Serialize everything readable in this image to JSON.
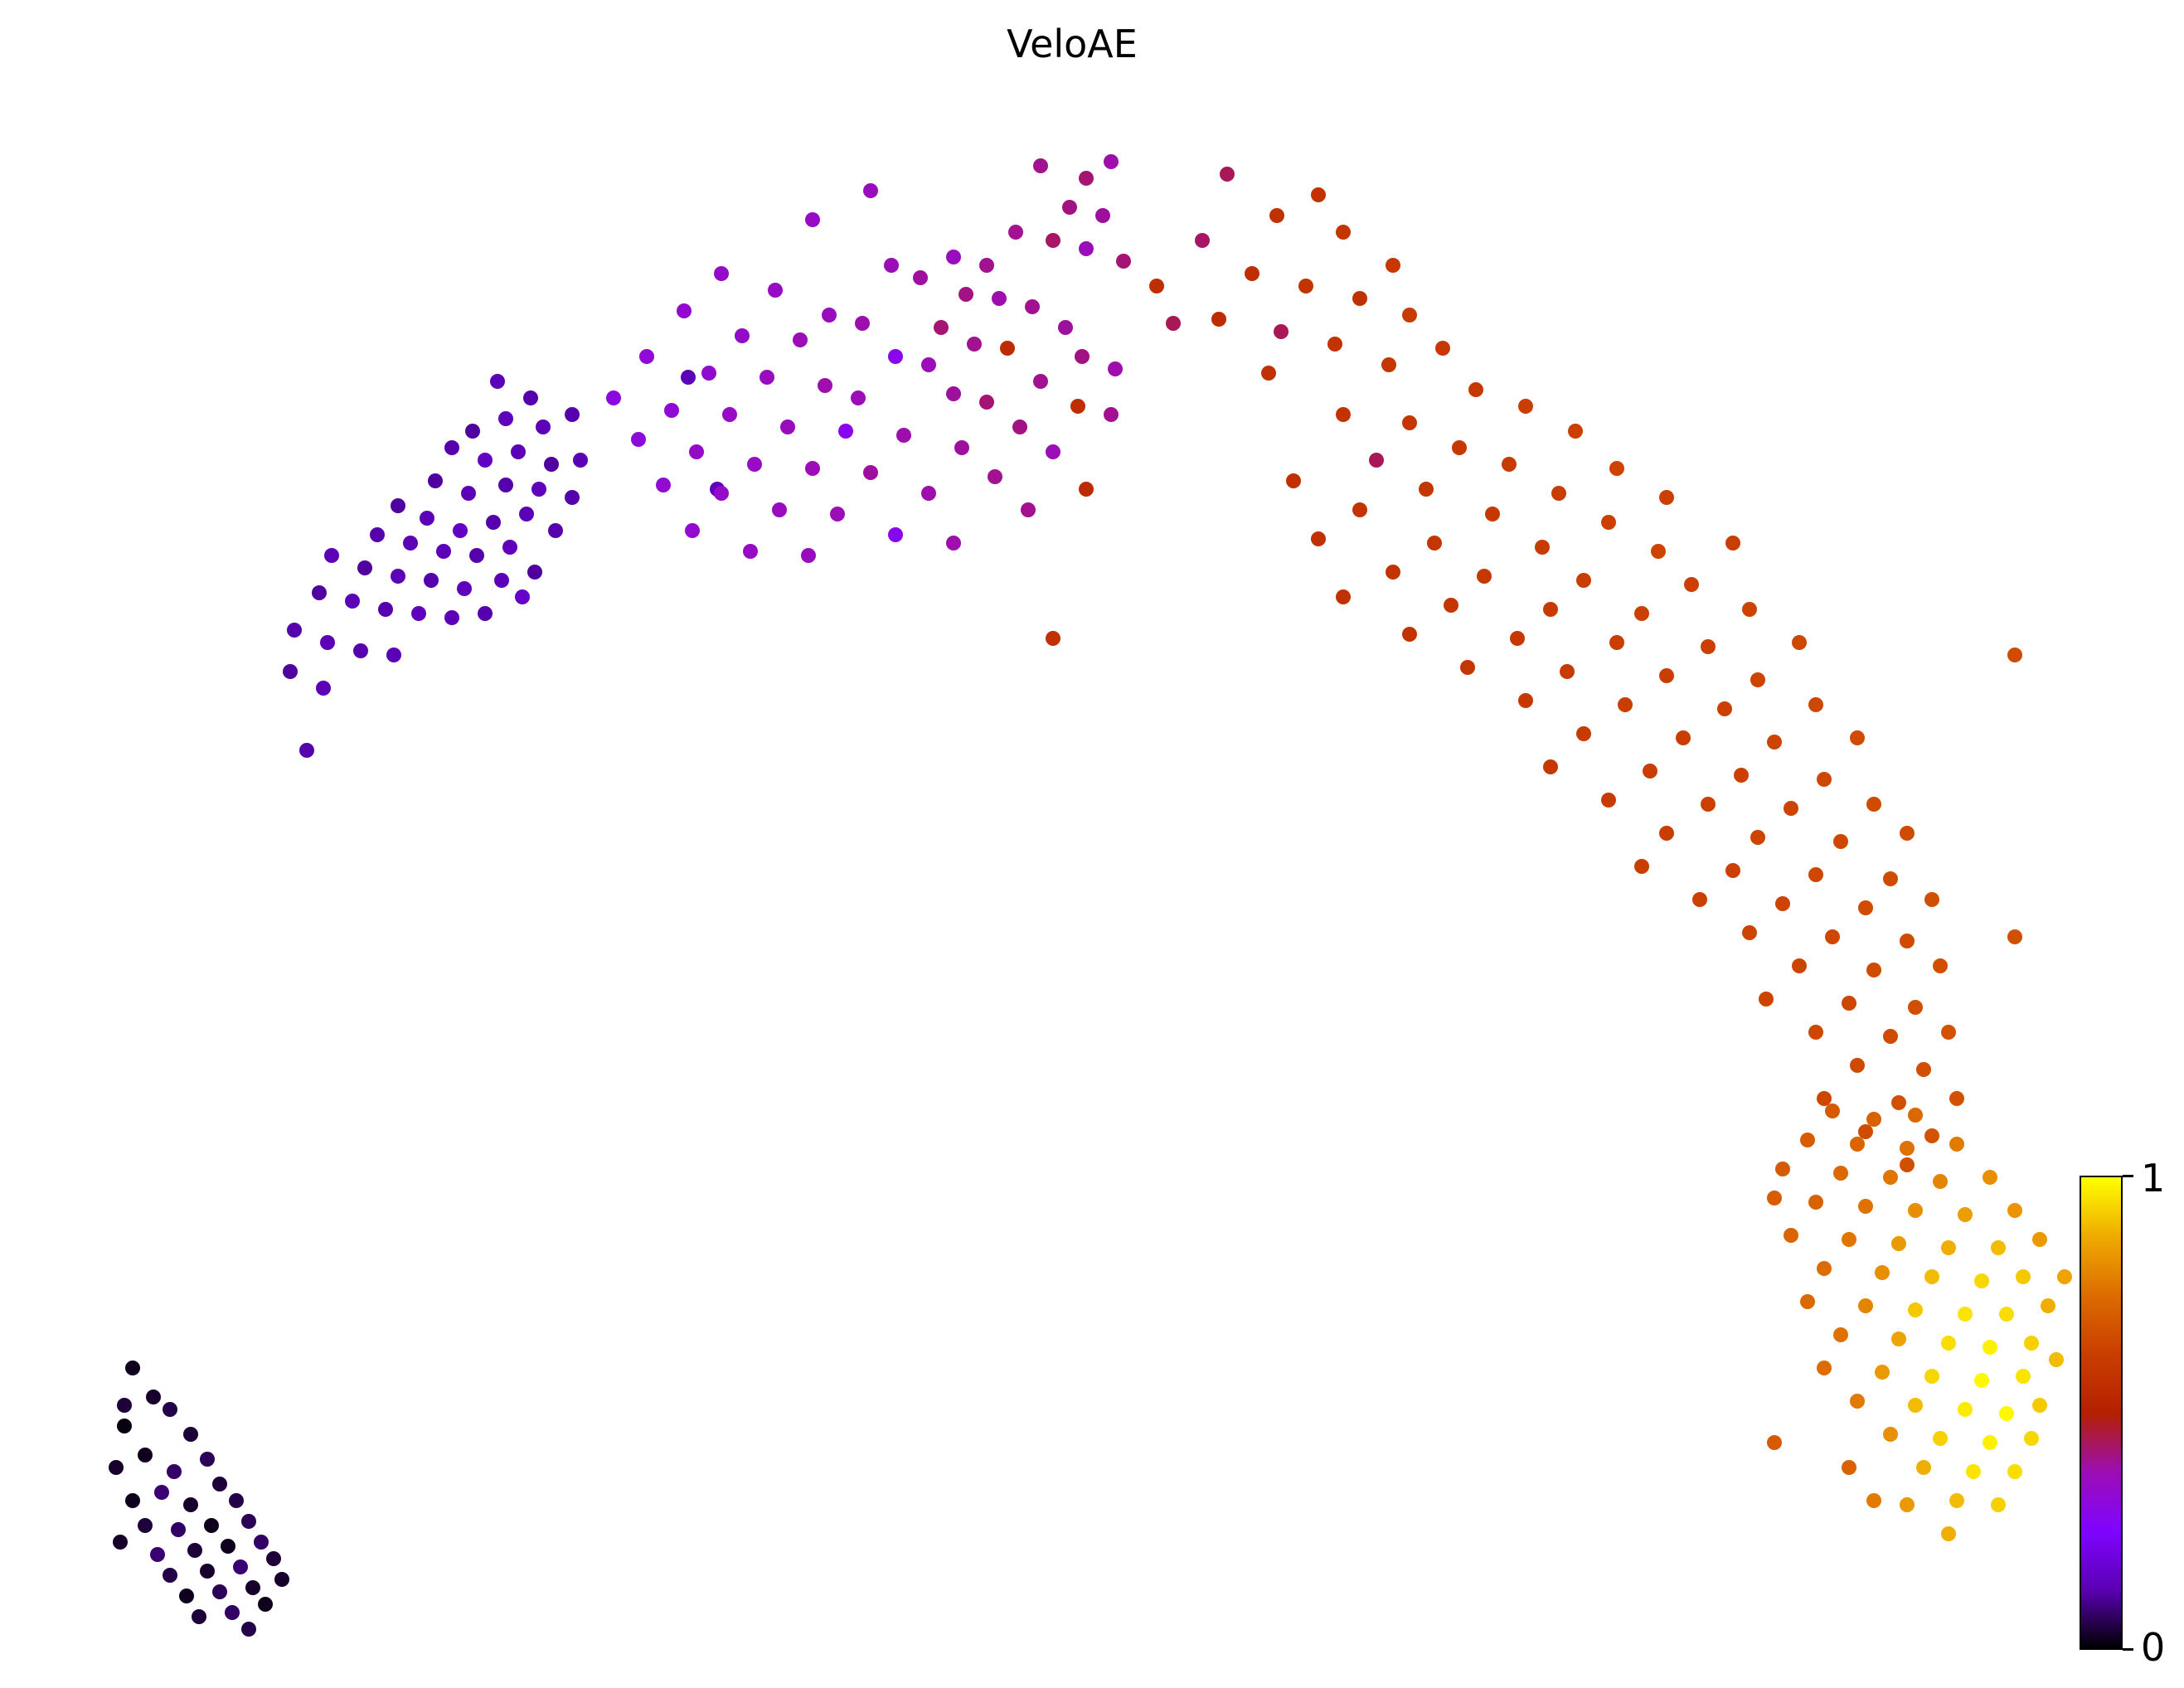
{
  "chart_data": {
    "type": "scatter",
    "title": "VeloAE",
    "xlabel": "",
    "ylabel": "",
    "grid": false,
    "axes_visible": false,
    "marker_radius_px": 9,
    "value_name": "pseudotime",
    "value_range": [
      0,
      1
    ],
    "colormap": {
      "name": "gnuplot",
      "stops": [
        {
          "t": 0.0,
          "color": "#000000"
        },
        {
          "t": 0.125,
          "color": "#5A00B4"
        },
        {
          "t": 0.25,
          "color": "#8004FF"
        },
        {
          "t": 0.375,
          "color": "#9C0DB4"
        },
        {
          "t": 0.5,
          "color": "#B42000"
        },
        {
          "t": 0.625,
          "color": "#CA3E00"
        },
        {
          "t": 0.75,
          "color": "#DD6C00"
        },
        {
          "t": 0.875,
          "color": "#EFAB00"
        },
        {
          "t": 1.0,
          "color": "#FFFF00"
        }
      ]
    },
    "colorbar": {
      "position": "right",
      "min_label": "0",
      "max_label": "1"
    },
    "points_format": "[x_px, y_px, value]",
    "points": [
      [
        160,
        1650,
        0.02
      ],
      [
        185,
        1685,
        0.03
      ],
      [
        150,
        1720,
        0.01
      ],
      [
        205,
        1700,
        0.05
      ],
      [
        230,
        1730,
        0.04
      ],
      [
        175,
        1755,
        0.02
      ],
      [
        140,
        1770,
        0.03
      ],
      [
        210,
        1775,
        0.07
      ],
      [
        250,
        1760,
        0.06
      ],
      [
        265,
        1790,
        0.04
      ],
      [
        195,
        1800,
        0.08
      ],
      [
        160,
        1810,
        0.02
      ],
      [
        230,
        1815,
        0.03
      ],
      [
        285,
        1810,
        0.05
      ],
      [
        175,
        1840,
        0.04
      ],
      [
        215,
        1845,
        0.07
      ],
      [
        255,
        1840,
        0.02
      ],
      [
        300,
        1835,
        0.06
      ],
      [
        145,
        1860,
        0.03
      ],
      [
        190,
        1875,
        0.08
      ],
      [
        235,
        1870,
        0.04
      ],
      [
        275,
        1865,
        0.02
      ],
      [
        315,
        1860,
        0.07
      ],
      [
        205,
        1900,
        0.05
      ],
      [
        250,
        1895,
        0.03
      ],
      [
        290,
        1890,
        0.08
      ],
      [
        330,
        1880,
        0.04
      ],
      [
        225,
        1925,
        0.02
      ],
      [
        265,
        1920,
        0.06
      ],
      [
        305,
        1915,
        0.03
      ],
      [
        240,
        1950,
        0.04
      ],
      [
        280,
        1945,
        0.07
      ],
      [
        320,
        1935,
        0.02
      ],
      [
        300,
        1965,
        0.05
      ],
      [
        150,
        1695,
        0.04
      ],
      [
        340,
        1905,
        0.03
      ],
      [
        600,
        460,
        0.13
      ],
      [
        640,
        480,
        0.12
      ],
      [
        610,
        505,
        0.14
      ],
      [
        570,
        520,
        0.11
      ],
      [
        655,
        515,
        0.13
      ],
      [
        690,
        500,
        0.12
      ],
      [
        625,
        545,
        0.13
      ],
      [
        585,
        555,
        0.15
      ],
      [
        545,
        540,
        0.12
      ],
      [
        665,
        560,
        0.11
      ],
      [
        700,
        555,
        0.13
      ],
      [
        610,
        585,
        0.12
      ],
      [
        650,
        590,
        0.14
      ],
      [
        565,
        595,
        0.13
      ],
      [
        525,
        580,
        0.11
      ],
      [
        690,
        600,
        0.12
      ],
      [
        635,
        620,
        0.13
      ],
      [
        595,
        630,
        0.12
      ],
      [
        555,
        640,
        0.15
      ],
      [
        515,
        625,
        0.13
      ],
      [
        480,
        610,
        0.11
      ],
      [
        670,
        640,
        0.12
      ],
      [
        615,
        660,
        0.14
      ],
      [
        575,
        670,
        0.12
      ],
      [
        535,
        665,
        0.13
      ],
      [
        495,
        655,
        0.13
      ],
      [
        455,
        645,
        0.12
      ],
      [
        645,
        690,
        0.11
      ],
      [
        605,
        700,
        0.13
      ],
      [
        560,
        710,
        0.14
      ],
      [
        520,
        700,
        0.12
      ],
      [
        480,
        695,
        0.13
      ],
      [
        440,
        685,
        0.11
      ],
      [
        400,
        670,
        0.13
      ],
      [
        585,
        740,
        0.12
      ],
      [
        545,
        745,
        0.13
      ],
      [
        505,
        740,
        0.14
      ],
      [
        465,
        735,
        0.12
      ],
      [
        425,
        725,
        0.13
      ],
      [
        385,
        715,
        0.11
      ],
      [
        630,
        720,
        0.16
      ],
      [
        355,
        760,
        0.12
      ],
      [
        395,
        775,
        0.13
      ],
      [
        435,
        785,
        0.12
      ],
      [
        475,
        790,
        0.13
      ],
      [
        350,
        810,
        0.11
      ],
      [
        390,
        830,
        0.13
      ],
      [
        370,
        905,
        0.12
      ],
      [
        830,
        455,
        0.13
      ],
      [
        865,
        590,
        0.14
      ],
      [
        1255,
        200,
        0.4
      ],
      [
        1310,
        215,
        0.42
      ],
      [
        1340,
        195,
        0.38
      ],
      [
        1050,
        230,
        0.36
      ],
      [
        1290,
        250,
        0.41
      ],
      [
        1330,
        260,
        0.39
      ],
      [
        980,
        265,
        0.35
      ],
      [
        1225,
        280,
        0.4
      ],
      [
        1270,
        290,
        0.43
      ],
      [
        1310,
        300,
        0.37
      ],
      [
        1150,
        310,
        0.36
      ],
      [
        1190,
        320,
        0.4
      ],
      [
        1355,
        315,
        0.42
      ],
      [
        870,
        330,
        0.34
      ],
      [
        1075,
        320,
        0.37
      ],
      [
        1110,
        335,
        0.39
      ],
      [
        1395,
        345,
        0.56
      ],
      [
        935,
        350,
        0.35
      ],
      [
        1165,
        355,
        0.41
      ],
      [
        1205,
        360,
        0.38
      ],
      [
        1245,
        370,
        0.4
      ],
      [
        825,
        375,
        0.33
      ],
      [
        1000,
        380,
        0.36
      ],
      [
        1040,
        390,
        0.38
      ],
      [
        1135,
        395,
        0.42
      ],
      [
        1285,
        395,
        0.39
      ],
      [
        1415,
        390,
        0.44
      ],
      [
        895,
        405,
        0.34
      ],
      [
        965,
        410,
        0.37
      ],
      [
        1175,
        415,
        0.4
      ],
      [
        1215,
        420,
        0.55
      ],
      [
        780,
        430,
        0.32
      ],
      [
        1080,
        430,
        0.28
      ],
      [
        1120,
        440,
        0.37
      ],
      [
        1305,
        430,
        0.41
      ],
      [
        1345,
        445,
        0.38
      ],
      [
        855,
        450,
        0.33
      ],
      [
        925,
        455,
        0.36
      ],
      [
        995,
        465,
        0.38
      ],
      [
        1255,
        460,
        0.4
      ],
      [
        740,
        480,
        0.3
      ],
      [
        1035,
        480,
        0.37
      ],
      [
        1150,
        475,
        0.39
      ],
      [
        1190,
        485,
        0.42
      ],
      [
        810,
        495,
        0.32
      ],
      [
        880,
        500,
        0.35
      ],
      [
        1300,
        490,
        0.56
      ],
      [
        1340,
        500,
        0.4
      ],
      [
        950,
        515,
        0.36
      ],
      [
        1020,
        520,
        0.28
      ],
      [
        1090,
        525,
        0.38
      ],
      [
        1230,
        515,
        0.41
      ],
      [
        770,
        530,
        0.31
      ],
      [
        840,
        545,
        0.34
      ],
      [
        1160,
        540,
        0.39
      ],
      [
        1270,
        545,
        0.37
      ],
      [
        910,
        560,
        0.35
      ],
      [
        980,
        565,
        0.37
      ],
      [
        1050,
        570,
        0.39
      ],
      [
        1200,
        575,
        0.4
      ],
      [
        800,
        585,
        0.33
      ],
      [
        870,
        595,
        0.34
      ],
      [
        1120,
        595,
        0.38
      ],
      [
        1310,
        590,
        0.55
      ],
      [
        940,
        615,
        0.36
      ],
      [
        1010,
        620,
        0.37
      ],
      [
        1240,
        615,
        0.4
      ],
      [
        835,
        640,
        0.33
      ],
      [
        1080,
        645,
        0.28
      ],
      [
        1150,
        655,
        0.38
      ],
      [
        905,
        665,
        0.35
      ],
      [
        975,
        670,
        0.36
      ],
      [
        1480,
        210,
        0.44
      ],
      [
        1590,
        235,
        0.58
      ],
      [
        1540,
        260,
        0.57
      ],
      [
        1620,
        280,
        0.59
      ],
      [
        1450,
        290,
        0.43
      ],
      [
        1680,
        320,
        0.6
      ],
      [
        1510,
        330,
        0.56
      ],
      [
        1575,
        345,
        0.58
      ],
      [
        1640,
        360,
        0.57
      ],
      [
        1700,
        380,
        0.61
      ],
      [
        1470,
        385,
        0.55
      ],
      [
        1545,
        400,
        0.44
      ],
      [
        1610,
        415,
        0.58
      ],
      [
        1740,
        420,
        0.6
      ],
      [
        1675,
        440,
        0.59
      ],
      [
        1530,
        450,
        0.57
      ],
      [
        1780,
        470,
        0.6
      ],
      [
        1840,
        490,
        0.62
      ],
      [
        1620,
        500,
        0.58
      ],
      [
        1700,
        510,
        0.59
      ],
      [
        1900,
        520,
        0.63
      ],
      [
        1760,
        540,
        0.6
      ],
      [
        1660,
        555,
        0.44
      ],
      [
        1820,
        560,
        0.61
      ],
      [
        1950,
        565,
        0.64
      ],
      [
        1560,
        580,
        0.57
      ],
      [
        1720,
        590,
        0.59
      ],
      [
        1880,
        595,
        0.62
      ],
      [
        2010,
        600,
        0.63
      ],
      [
        1640,
        615,
        0.58
      ],
      [
        1800,
        620,
        0.6
      ],
      [
        1940,
        630,
        0.63
      ],
      [
        1590,
        650,
        0.57
      ],
      [
        1730,
        655,
        0.59
      ],
      [
        1860,
        660,
        0.61
      ],
      [
        2000,
        665,
        0.64
      ],
      [
        2090,
        655,
        0.62
      ],
      [
        1680,
        690,
        0.58
      ],
      [
        1790,
        695,
        0.6
      ],
      [
        1910,
        700,
        0.62
      ],
      [
        2040,
        705,
        0.63
      ],
      [
        1620,
        720,
        0.57
      ],
      [
        1750,
        730,
        0.59
      ],
      [
        1870,
        735,
        0.61
      ],
      [
        1980,
        740,
        0.63
      ],
      [
        2110,
        735,
        0.64
      ],
      [
        1700,
        765,
        0.58
      ],
      [
        1830,
        770,
        0.6
      ],
      [
        1950,
        775,
        0.62
      ],
      [
        2060,
        780,
        0.63
      ],
      [
        2170,
        775,
        0.65
      ],
      [
        1770,
        805,
        0.59
      ],
      [
        1890,
        810,
        0.61
      ],
      [
        2010,
        815,
        0.62
      ],
      [
        2120,
        820,
        0.64
      ],
      [
        1840,
        845,
        0.6
      ],
      [
        1960,
        850,
        0.62
      ],
      [
        2080,
        855,
        0.63
      ],
      [
        2190,
        850,
        0.65
      ],
      [
        1910,
        885,
        0.61
      ],
      [
        2030,
        890,
        0.62
      ],
      [
        2140,
        895,
        0.64
      ],
      [
        2240,
        890,
        0.66
      ],
      [
        1870,
        925,
        0.6
      ],
      [
        1990,
        930,
        0.62
      ],
      [
        2100,
        935,
        0.63
      ],
      [
        2200,
        940,
        0.65
      ],
      [
        1940,
        965,
        0.61
      ],
      [
        2060,
        970,
        0.63
      ],
      [
        2160,
        975,
        0.64
      ],
      [
        2260,
        970,
        0.66
      ],
      [
        2010,
        1005,
        0.62
      ],
      [
        2120,
        1010,
        0.64
      ],
      [
        2220,
        1015,
        0.65
      ],
      [
        2300,
        1005,
        0.66
      ],
      [
        1980,
        1045,
        0.62
      ],
      [
        2090,
        1050,
        0.63
      ],
      [
        2190,
        1055,
        0.65
      ],
      [
        2280,
        1060,
        0.66
      ],
      [
        2050,
        1085,
        0.63
      ],
      [
        2150,
        1090,
        0.64
      ],
      [
        2250,
        1095,
        0.66
      ],
      [
        2330,
        1085,
        0.67
      ],
      [
        2110,
        1125,
        0.64
      ],
      [
        2210,
        1130,
        0.65
      ],
      [
        2300,
        1135,
        0.66
      ],
      [
        2170,
        1165,
        0.64
      ],
      [
        2260,
        1170,
        0.66
      ],
      [
        2340,
        1165,
        0.67
      ],
      [
        2130,
        1205,
        0.64
      ],
      [
        2230,
        1210,
        0.65
      ],
      [
        2310,
        1215,
        0.67
      ],
      [
        2190,
        1245,
        0.65
      ],
      [
        2280,
        1250,
        0.66
      ],
      [
        2350,
        1245,
        0.68
      ],
      [
        2240,
        1285,
        0.66
      ],
      [
        2320,
        1290,
        0.67
      ],
      [
        2200,
        1325,
        0.65
      ],
      [
        2290,
        1330,
        0.67
      ],
      [
        2360,
        1325,
        0.68
      ],
      [
        2250,
        1365,
        0.66
      ],
      [
        2330,
        1370,
        0.68
      ],
      [
        2300,
        1405,
        0.67
      ],
      [
        1270,
        770,
        0.57
      ],
      [
        2430,
        790,
        0.66
      ],
      [
        2430,
        1130,
        0.67
      ],
      [
        2210,
        1340,
        0.7
      ],
      [
        2260,
        1350,
        0.72
      ],
      [
        2310,
        1345,
        0.74
      ],
      [
        2180,
        1375,
        0.71
      ],
      [
        2240,
        1380,
        0.73
      ],
      [
        2300,
        1385,
        0.76
      ],
      [
        2360,
        1380,
        0.78
      ],
      [
        2150,
        1410,
        0.7
      ],
      [
        2220,
        1415,
        0.74
      ],
      [
        2280,
        1420,
        0.77
      ],
      [
        2340,
        1425,
        0.8
      ],
      [
        2400,
        1420,
        0.82
      ],
      [
        2190,
        1450,
        0.72
      ],
      [
        2250,
        1455,
        0.76
      ],
      [
        2310,
        1460,
        0.82
      ],
      [
        2370,
        1465,
        0.85
      ],
      [
        2430,
        1460,
        0.83
      ],
      [
        2160,
        1490,
        0.73
      ],
      [
        2230,
        1495,
        0.77
      ],
      [
        2290,
        1500,
        0.84
      ],
      [
        2350,
        1505,
        0.88
      ],
      [
        2410,
        1505,
        0.9
      ],
      [
        2460,
        1495,
        0.84
      ],
      [
        2200,
        1530,
        0.75
      ],
      [
        2270,
        1535,
        0.82
      ],
      [
        2330,
        1540,
        0.9
      ],
      [
        2390,
        1545,
        0.94
      ],
      [
        2440,
        1540,
        0.92
      ],
      [
        2180,
        1570,
        0.74
      ],
      [
        2250,
        1575,
        0.8
      ],
      [
        2310,
        1580,
        0.92
      ],
      [
        2370,
        1585,
        0.96
      ],
      [
        2420,
        1585,
        0.95
      ],
      [
        2470,
        1575,
        0.88
      ],
      [
        2220,
        1610,
        0.76
      ],
      [
        2290,
        1615,
        0.86
      ],
      [
        2350,
        1620,
        0.95
      ],
      [
        2400,
        1625,
        0.98
      ],
      [
        2450,
        1620,
        0.93
      ],
      [
        2200,
        1650,
        0.75
      ],
      [
        2270,
        1655,
        0.84
      ],
      [
        2330,
        1660,
        0.94
      ],
      [
        2390,
        1665,
        0.99
      ],
      [
        2440,
        1660,
        0.96
      ],
      [
        2240,
        1690,
        0.78
      ],
      [
        2310,
        1695,
        0.9
      ],
      [
        2370,
        1700,
        0.97
      ],
      [
        2420,
        1705,
        0.99
      ],
      [
        2460,
        1695,
        0.92
      ],
      [
        2280,
        1730,
        0.82
      ],
      [
        2340,
        1735,
        0.93
      ],
      [
        2400,
        1740,
        0.98
      ],
      [
        2450,
        1735,
        0.94
      ],
      [
        2320,
        1770,
        0.88
      ],
      [
        2380,
        1775,
        0.96
      ],
      [
        2430,
        1775,
        0.95
      ],
      [
        2360,
        1810,
        0.9
      ],
      [
        2410,
        1815,
        0.93
      ],
      [
        2300,
        1815,
        0.84
      ],
      [
        2350,
        1850,
        0.88
      ],
      [
        2140,
        1445,
        0.71
      ],
      [
        2480,
        1640,
        0.9
      ],
      [
        2490,
        1540,
        0.86
      ],
      [
        2230,
        1770,
        0.72
      ],
      [
        2260,
        1810,
        0.78
      ],
      [
        2140,
        1740,
        0.7
      ]
    ]
  }
}
